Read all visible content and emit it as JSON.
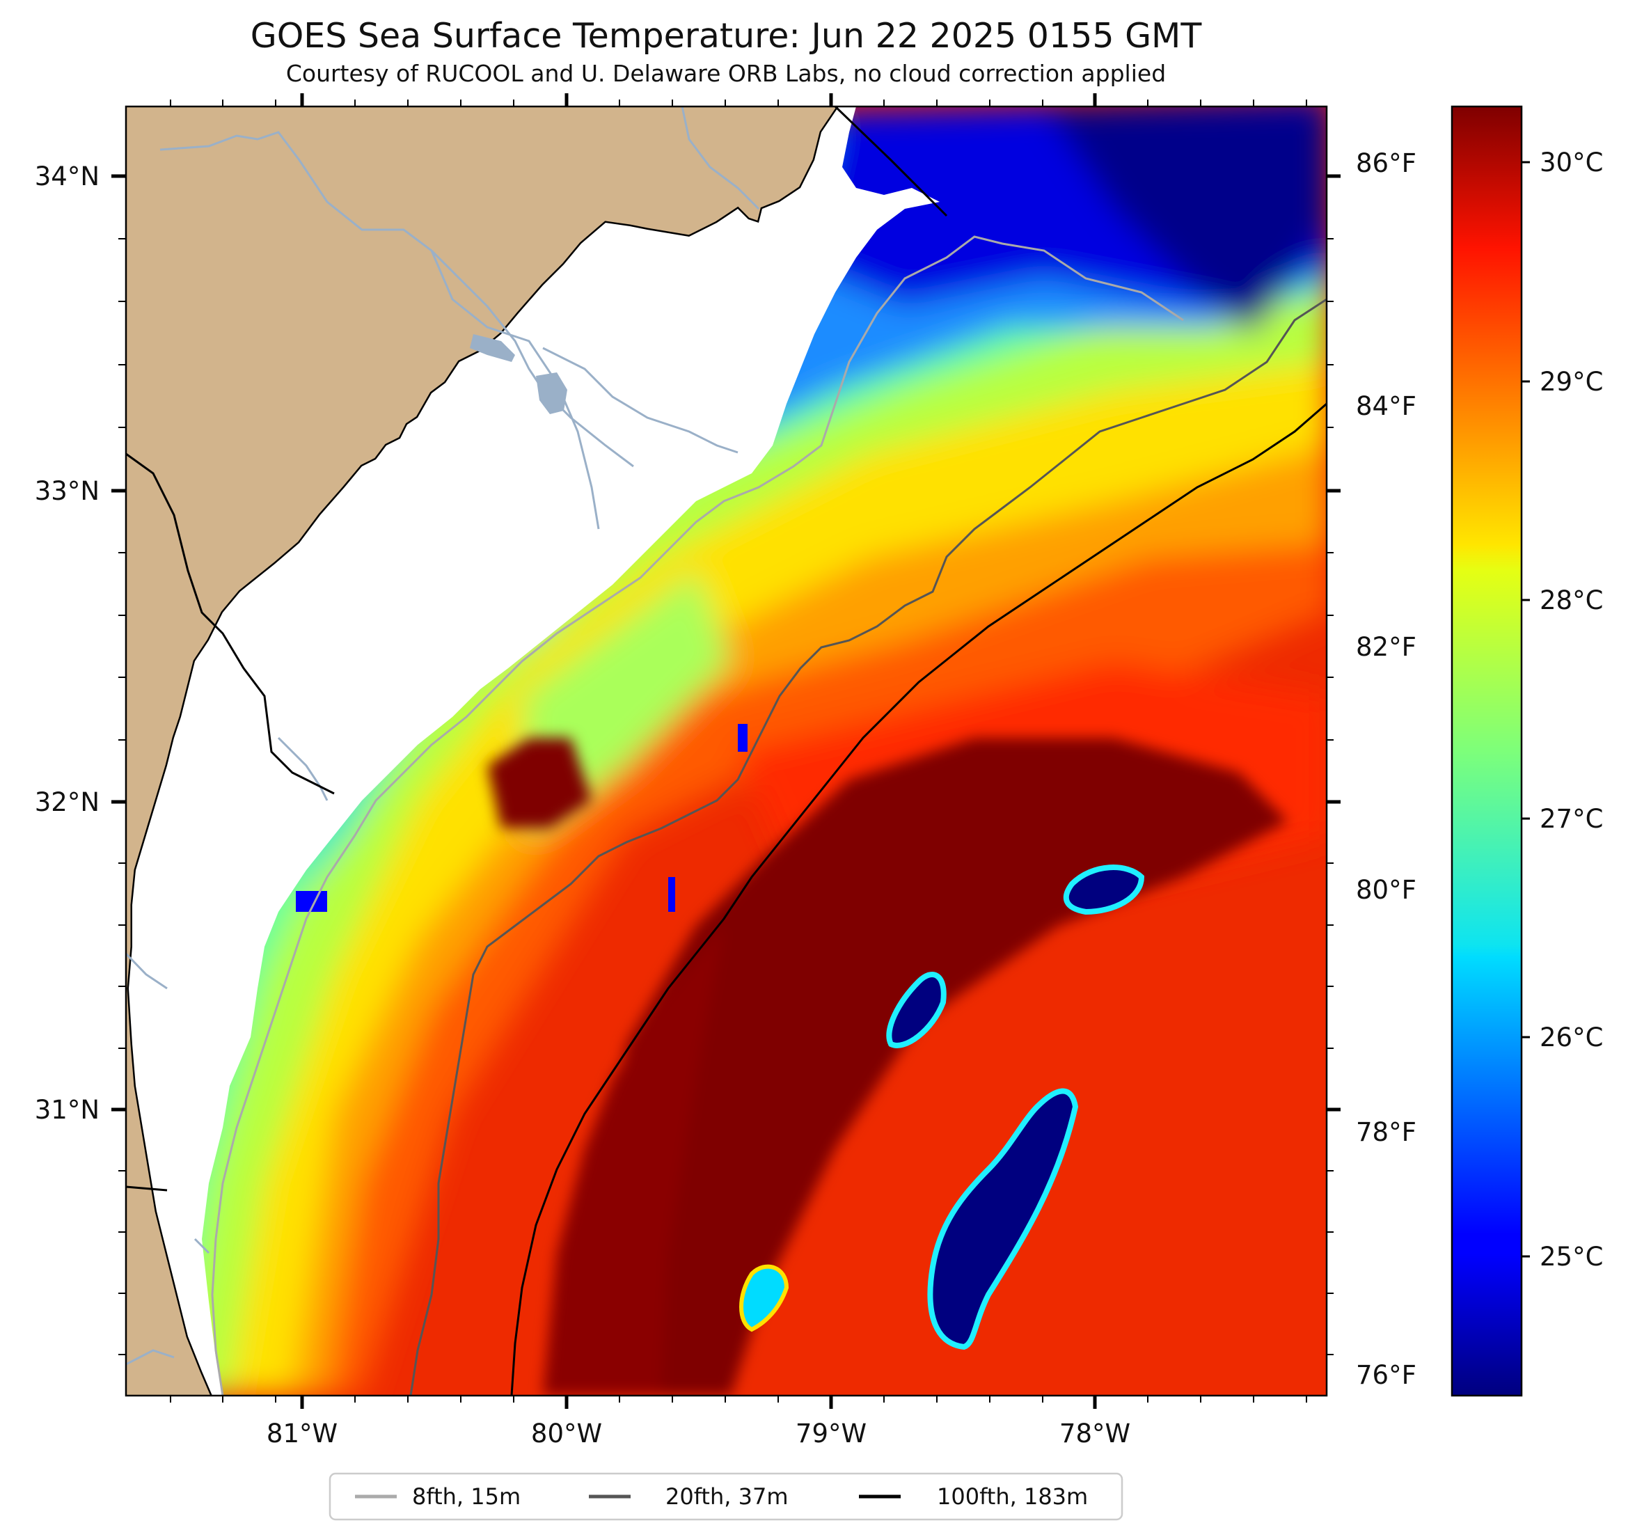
{
  "title": "GOES Sea Surface Temperature: Jun 22 2025 0155 GMT",
  "subtitle": "Courtesy of RUCOOL and U. Delaware ORB Labs, no cloud correction applied",
  "map": {
    "lat_ticks": [
      "34°N",
      "33°N",
      "32°N",
      "31°N"
    ],
    "lon_ticks": [
      "81°W",
      "80°W",
      "79°W",
      "78°W"
    ],
    "fahrenheit_ticks": [
      "86°F",
      "84°F",
      "82°F",
      "80°F",
      "78°F",
      "76°F"
    ],
    "lat_range": [
      30.2,
      34.2
    ],
    "lon_range": [
      -81.67,
      -77.1
    ],
    "land_color": "#d2b48c",
    "water_color": "#ffffff"
  },
  "colorbar": {
    "label_ticks": [
      "30°C",
      "29°C",
      "28°C",
      "27°C",
      "26°C",
      "25°C"
    ],
    "range_c": [
      24.3,
      30.2
    ],
    "colormap": "jet"
  },
  "legend": {
    "items": [
      {
        "label": "8fth, 15m",
        "color": "#aaaaaa"
      },
      {
        "label": "20fth, 37m",
        "color": "#555555"
      },
      {
        "label": "100fth, 183m",
        "color": "#000000"
      }
    ]
  }
}
